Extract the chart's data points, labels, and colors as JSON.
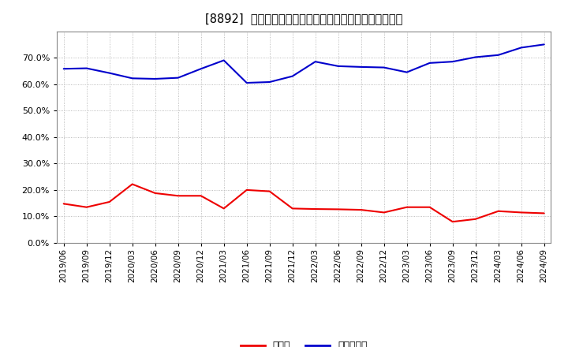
{
  "title": "[8892]  現預金、有利子負債の総資産に対する比率の推移",
  "cash_label": "現預金",
  "debt_label": "有利子負債",
  "cash_color": "#EE0000",
  "debt_color": "#0000CC",
  "background_color": "#FFFFFF",
  "plot_bg_color": "#FFFFFF",
  "grid_color": "#AAAAAA",
  "ylim": [
    0.0,
    0.8
  ],
  "yticks": [
    0.0,
    0.1,
    0.2,
    0.3,
    0.4,
    0.5,
    0.6,
    0.7
  ],
  "dates": [
    "2019/06",
    "2019/09",
    "2019/12",
    "2020/03",
    "2020/06",
    "2020/09",
    "2020/12",
    "2021/03",
    "2021/06",
    "2021/09",
    "2021/12",
    "2022/03",
    "2022/06",
    "2022/09",
    "2022/12",
    "2023/03",
    "2023/06",
    "2023/09",
    "2023/12",
    "2024/03",
    "2024/06",
    "2024/09"
  ],
  "cash": [
    0.148,
    0.135,
    0.155,
    0.222,
    0.188,
    0.178,
    0.178,
    0.13,
    0.2,
    0.195,
    0.13,
    0.128,
    0.127,
    0.125,
    0.115,
    0.135,
    0.135,
    0.08,
    0.09,
    0.12,
    0.115,
    0.112
  ],
  "debt": [
    0.658,
    0.66,
    0.642,
    0.622,
    0.62,
    0.624,
    0.658,
    0.69,
    0.605,
    0.608,
    0.63,
    0.685,
    0.668,
    0.665,
    0.663,
    0.645,
    0.68,
    0.685,
    0.702,
    0.71,
    0.738,
    0.75
  ]
}
